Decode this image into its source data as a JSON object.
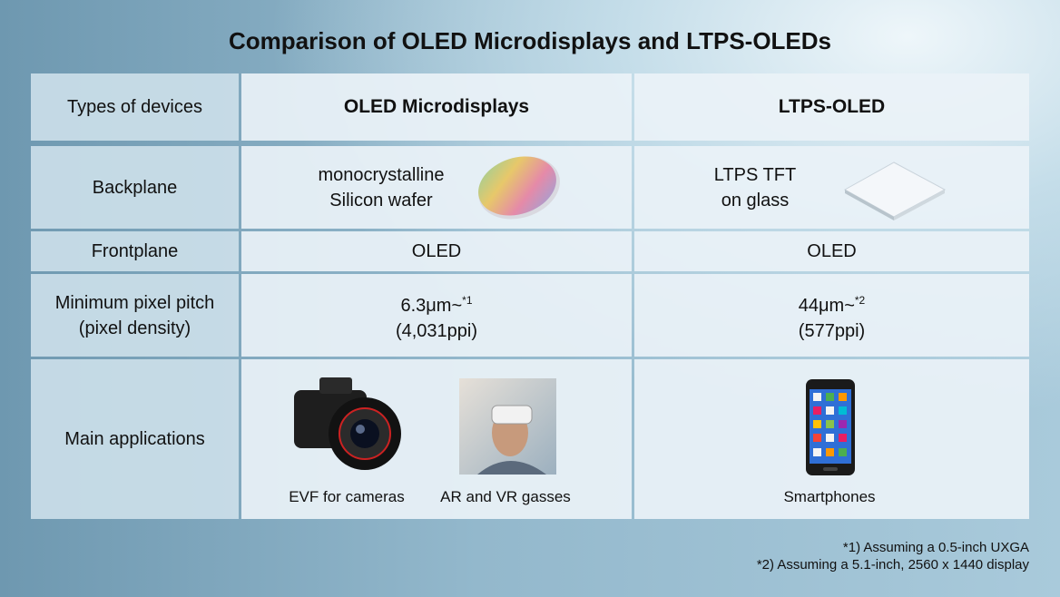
{
  "header": {
    "title": "Comparison of OLED Microdisplays and LTPS-OLEDs"
  },
  "table": {
    "header": [
      "Types of devices",
      "OLED Microdisplays",
      "LTPS-OLED"
    ],
    "rows": [
      {
        "label": [
          "Backplane"
        ],
        "cells": [
          [
            "monocrystalline",
            "Silicon wafer"
          ],
          [
            "LTPS TFT",
            "on glass"
          ]
        ]
      },
      {
        "label": [
          "Frontplane"
        ],
        "cells": [
          [
            "OLED"
          ],
          [
            "OLED"
          ]
        ]
      },
      {
        "label": [
          "Minimum pixel pitch",
          "(pixel density)"
        ],
        "cells": [
          {
            "pitch": "6.3μm~",
            "note": "*1",
            "density": "(4,031ppi)"
          },
          {
            "pitch": "44μm~",
            "note": "*2",
            "density": "(577ppi)"
          }
        ]
      },
      {
        "label": [
          "Main applications"
        ],
        "cells": [
          [
            "EVF for cameras",
            "AR and VR gasses"
          ],
          [
            "Smartphones"
          ]
        ]
      }
    ]
  },
  "footnotes": [
    "*1) Assuming a 0.5-inch UXGA",
    "*2) Assuming a 5.1-inch, 2560 x 1440 display"
  ]
}
